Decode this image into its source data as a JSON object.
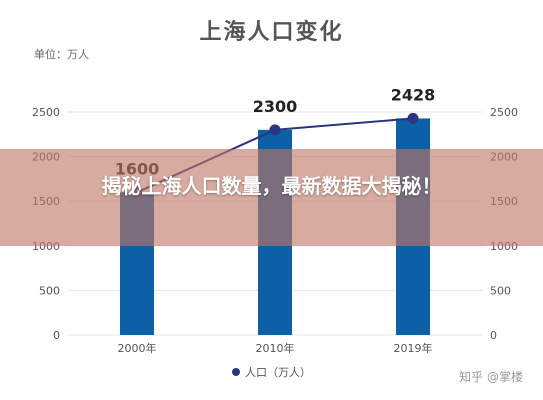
{
  "headline": "揭秘上海人口数量，最新数据大揭秘！",
  "watermark": "知乎 @掌楼",
  "chart_data": {
    "type": "bar",
    "title": "上海人口变化",
    "unit_label": "单位：万人",
    "categories": [
      "2000年",
      "2010年",
      "2019年"
    ],
    "series": [
      {
        "name": "人口（万人）",
        "kind": "bar",
        "values": [
          1600,
          2300,
          2428
        ]
      },
      {
        "name": "人口（万人）",
        "kind": "line",
        "values": [
          1600,
          2300,
          2428
        ]
      }
    ],
    "data_labels": [
      "1600",
      "2300",
      "2428"
    ],
    "ylim": [
      0,
      2500
    ],
    "yticks": [
      0,
      500,
      1000,
      1500,
      2000,
      2500
    ],
    "ytick_labels": [
      "0",
      "500",
      "1000",
      "1500",
      "2000",
      "2500"
    ],
    "secondary_ylim": [
      0,
      2500
    ],
    "grid": true,
    "legend_position": "bottom",
    "legend_label": "人口（万人）",
    "colors": {
      "bar": "#0d5fa6",
      "line": "#2a3680",
      "axis_text": "#555555",
      "grid": "#e6e6e6"
    }
  }
}
